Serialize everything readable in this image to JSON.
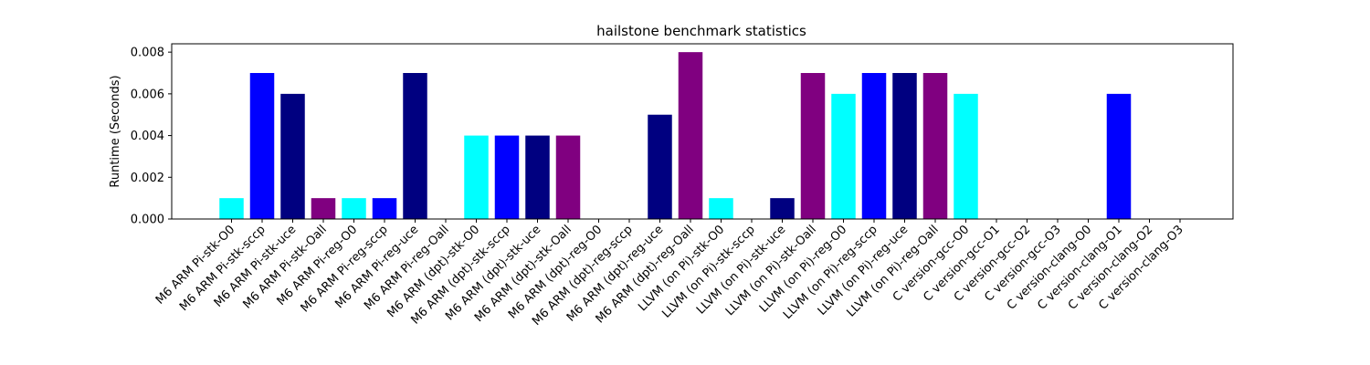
{
  "chart_data": {
    "type": "bar",
    "title": "hailstone benchmark statistics",
    "xlabel": "",
    "ylabel": "Runtime (Seconds)",
    "ylim": [
      0,
      0.0084
    ],
    "yticks": [
      "0.000",
      "0.002",
      "0.004",
      "0.006",
      "0.008"
    ],
    "ytick_values": [
      0,
      0.002,
      0.004,
      0.006,
      0.008
    ],
    "grid": false,
    "categories": [
      "M6 ARM Pi-stk-O0",
      "M6 ARM Pi-stk-sccp",
      "M6 ARM Pi-stk-uce",
      "M6 ARM Pi-stk-Oall",
      "M6 ARM Pi-reg-O0",
      "M6 ARM Pi-reg-sccp",
      "M6 ARM Pi-reg-uce",
      "M6 ARM Pi-reg-Oall",
      "M6 ARM (dpt)-stk-O0",
      "M6 ARM (dpt)-stk-sccp",
      "M6 ARM (dpt)-stk-uce",
      "M6 ARM (dpt)-stk-Oall",
      "M6 ARM (dpt)-reg-O0",
      "M6 ARM (dpt)-reg-sccp",
      "M6 ARM (dpt)-reg-uce",
      "M6 ARM (dpt)-reg-Oall",
      "LLVM (on Pi)-stk-O0",
      "LLVM (on Pi)-stk-sccp",
      "LLVM (on Pi)-stk-uce",
      "LLVM (on Pi)-stk-Oall",
      "LLVM (on Pi)-reg-O0",
      "LLVM (on Pi)-reg-sccp",
      "LLVM (on Pi)-reg-uce",
      "LLVM (on Pi)-reg-Oall",
      "C version-gcc-O0",
      "C version-gcc-O1",
      "C version-gcc-O2",
      "C version-gcc-O3",
      "C version-clang-O0",
      "C version-clang-O1",
      "C version-clang-O2",
      "C version-clang-O3"
    ],
    "values": [
      0.001,
      0.007,
      0.006,
      0.001,
      0.001,
      0.001,
      0.007,
      0,
      0.004,
      0.004,
      0.004,
      0.004,
      0,
      0,
      0.005,
      0.008,
      0.001,
      0,
      0.001,
      0.007,
      0.006,
      0.007,
      0.007,
      0.007,
      0.006,
      0,
      0,
      0,
      0,
      0.006,
      0,
      0
    ],
    "colors": [
      "#00ffff",
      "#0000ff",
      "#000080",
      "#800080"
    ]
  }
}
